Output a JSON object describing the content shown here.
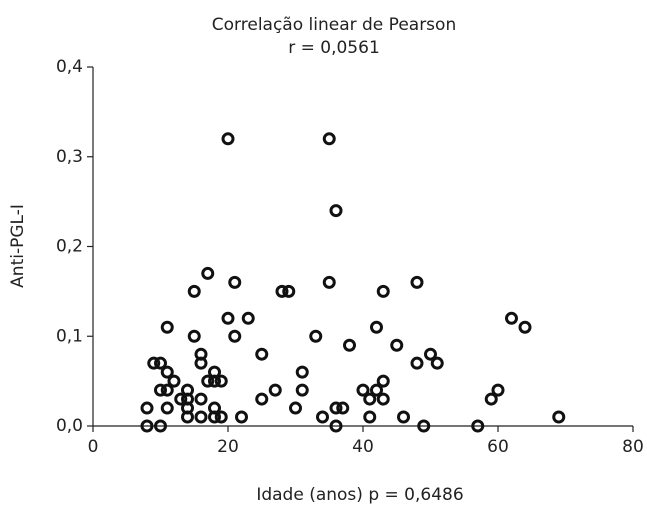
{
  "chart_data": {
    "type": "scatter",
    "title": "Correlação linear de Pearson",
    "subtitle": "r = 0,0561",
    "x_label": "Idade (anos) p = 0,6486",
    "y_label": "Anti-PGL-I",
    "color": "#111111",
    "xlim": [
      0,
      80
    ],
    "xticks": [
      0,
      20,
      40,
      60,
      80
    ],
    "ylim": [
      0,
      0.4
    ],
    "yticks": [
      {
        "value": 0,
        "label": "0,0"
      },
      {
        "value": 0.1,
        "label": "0,1"
      },
      {
        "value": 0.2,
        "label": "0,2"
      },
      {
        "value": 0.3,
        "label": "0,3"
      },
      {
        "value": 0.4,
        "label": "0,4"
      }
    ],
    "x": [
      20,
      35,
      36,
      17,
      15,
      21,
      28,
      29,
      35,
      43,
      48,
      11,
      20,
      23,
      21,
      15,
      33,
      42,
      38,
      45,
      62,
      64,
      16,
      25,
      50,
      51,
      48,
      9,
      10,
      16,
      31,
      11,
      18,
      12,
      17,
      18,
      19,
      43,
      10,
      11,
      14,
      27,
      31,
      40,
      42,
      60,
      13,
      14,
      16,
      25,
      41,
      43,
      59,
      8,
      11,
      14,
      18,
      30,
      36,
      37,
      14,
      16,
      18,
      19,
      22,
      34,
      41,
      46,
      69,
      8,
      10,
      36,
      49,
      57
    ],
    "values": [
      0.32,
      0.32,
      0.24,
      0.17,
      0.15,
      0.16,
      0.15,
      0.15,
      0.16,
      0.15,
      0.16,
      0.11,
      0.12,
      0.12,
      0.1,
      0.1,
      0.1,
      0.11,
      0.09,
      0.09,
      0.12,
      0.11,
      0.08,
      0.08,
      0.08,
      0.07,
      0.07,
      0.07,
      0.07,
      0.07,
      0.06,
      0.06,
      0.06,
      0.05,
      0.05,
      0.05,
      0.05,
      0.05,
      0.04,
      0.04,
      0.04,
      0.04,
      0.04,
      0.04,
      0.04,
      0.04,
      0.03,
      0.03,
      0.03,
      0.03,
      0.03,
      0.03,
      0.03,
      0.02,
      0.02,
      0.02,
      0.02,
      0.02,
      0.02,
      0.02,
      0.01,
      0.01,
      0.01,
      0.01,
      0.01,
      0.01,
      0.01,
      0.01,
      0.01,
      0,
      0,
      0,
      0,
      0
    ]
  }
}
